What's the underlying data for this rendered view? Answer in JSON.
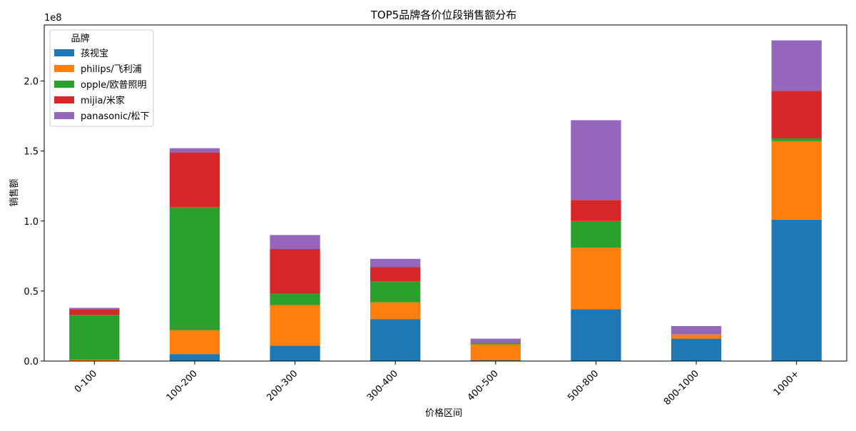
{
  "chart_data": {
    "type": "bar",
    "stacked": true,
    "title": "TOP5品牌各价位段销售额分布",
    "xlabel": "价格区间",
    "ylabel": "销售额",
    "y_scale_label": "1e8",
    "y_scale": 100000000,
    "ylim": [
      0,
      2.4
    ],
    "yticks": [
      0.0,
      0.5,
      1.0,
      1.5,
      2.0
    ],
    "ytick_labels": [
      "0.0",
      "0.5",
      "1.0",
      "1.5",
      "2.0"
    ],
    "legend_title": "品牌",
    "legend_position": "upper-left",
    "categories": [
      "0-100",
      "100-200",
      "200-300",
      "300-400",
      "400-500",
      "500-800",
      "800-1000",
      "1000+"
    ],
    "series": [
      {
        "name": "孩视宝",
        "color": "#1f77b4",
        "values": [
          0.0,
          0.05,
          0.11,
          0.3,
          0.005,
          0.37,
          0.16,
          1.01
        ]
      },
      {
        "name": "philips/飞利浦",
        "color": "#ff7f0e",
        "values": [
          0.01,
          0.17,
          0.29,
          0.12,
          0.115,
          0.44,
          0.03,
          0.56
        ]
      },
      {
        "name": "opple/欧普照明",
        "color": "#2ca02c",
        "values": [
          0.32,
          0.88,
          0.08,
          0.15,
          0.01,
          0.19,
          0.0,
          0.02
        ]
      },
      {
        "name": "mijia/米家",
        "color": "#d62728",
        "values": [
          0.04,
          0.39,
          0.32,
          0.1,
          0.0,
          0.15,
          0.0,
          0.34
        ]
      },
      {
        "name": "panasonic/松下",
        "color": "#9467bd",
        "values": [
          0.01,
          0.03,
          0.1,
          0.06,
          0.03,
          0.57,
          0.06,
          0.36
        ]
      }
    ]
  }
}
